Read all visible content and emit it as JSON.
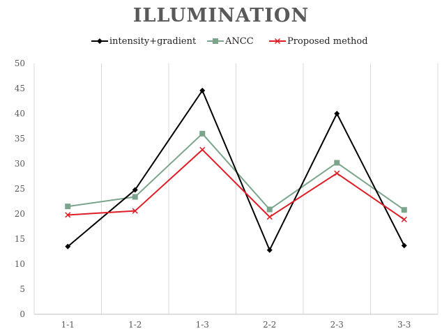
{
  "chart_data": {
    "type": "line",
    "title": "ILLUMINATION",
    "categories": [
      "1-1",
      "1-2",
      "1-3",
      "2-2",
      "2-3",
      "3-3"
    ],
    "ylim": [
      0,
      50
    ],
    "yticks": [
      0,
      5,
      10,
      15,
      20,
      25,
      30,
      35,
      40,
      45,
      50
    ],
    "grid": "vertical",
    "legend_position": "top",
    "series": [
      {
        "name": "intensity+gradient",
        "color": "#000000",
        "marker": "diamond",
        "values": [
          13.5,
          24.8,
          44.6,
          12.8,
          40.0,
          13.7
        ]
      },
      {
        "name": "ANCC",
        "color": "#7aa58c",
        "marker": "square",
        "values": [
          21.5,
          23.4,
          36.0,
          20.9,
          30.2,
          20.8
        ]
      },
      {
        "name": "Proposed method",
        "color": "#e01c24",
        "marker": "x",
        "values": [
          19.8,
          20.6,
          32.8,
          19.4,
          28.1,
          18.9
        ]
      }
    ]
  }
}
